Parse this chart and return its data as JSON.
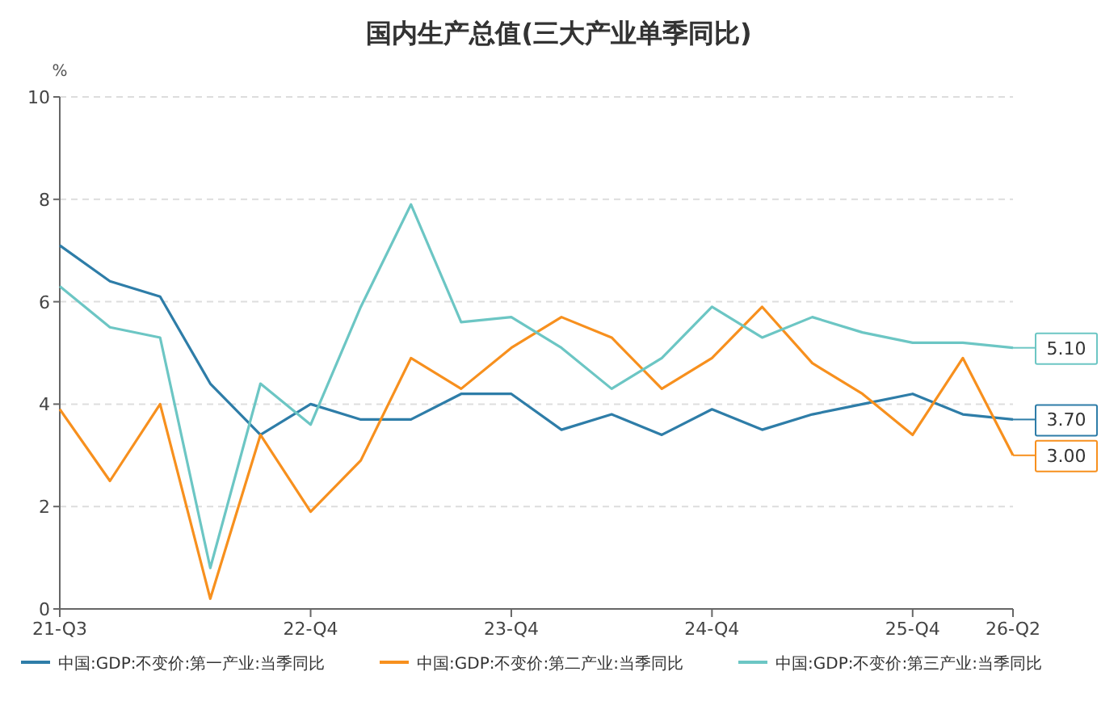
{
  "chart_data": {
    "type": "line",
    "title": "国内生产总值(三大产业单季同比)",
    "ylabel": "%",
    "categories": [
      "21-Q3",
      null,
      null,
      null,
      null,
      "22-Q4",
      null,
      null,
      null,
      "23-Q4",
      null,
      null,
      null,
      "24-Q4",
      null,
      null,
      null,
      "25-Q4",
      null,
      "26-Q2"
    ],
    "ylim": [
      0,
      10
    ],
    "yticks": [
      0,
      2,
      4,
      6,
      8,
      10
    ],
    "grid": "y",
    "legend": "bottom",
    "marker": "none",
    "line_style": "solid",
    "series": [
      {
        "name": "中国:GDP:不变价:第一产业:当季同比",
        "color": "#2e7da8",
        "values": [
          7.1,
          6.4,
          6.1,
          4.4,
          3.4,
          4.0,
          3.7,
          3.7,
          4.2,
          4.2,
          3.5,
          3.8,
          3.4,
          3.9,
          3.5,
          3.8,
          4.0,
          4.2,
          3.8,
          3.7
        ],
        "value_labels": [
          null,
          null,
          null,
          null,
          null,
          null,
          null,
          null,
          null,
          null,
          null,
          null,
          null,
          null,
          null,
          null,
          null,
          null,
          null,
          "3.70"
        ]
      },
      {
        "name": "中国:GDP:不变价:第二产业:当季同比",
        "color": "#f7901e",
        "values": [
          3.9,
          2.5,
          4.0,
          0.2,
          3.4,
          1.9,
          2.9,
          4.9,
          4.3,
          5.1,
          5.7,
          5.3,
          4.3,
          4.9,
          5.9,
          4.8,
          4.2,
          3.4,
          4.9,
          3.0
        ],
        "value_labels": [
          null,
          null,
          null,
          null,
          null,
          null,
          null,
          null,
          null,
          null,
          null,
          null,
          null,
          null,
          null,
          null,
          null,
          null,
          null,
          "3.00"
        ]
      },
      {
        "name": "中国:GDP:不变价:第三产业:当季同比",
        "color": "#6cc6c4",
        "values": [
          6.3,
          5.5,
          5.3,
          0.8,
          4.4,
          3.6,
          5.9,
          7.9,
          5.6,
          5.7,
          5.1,
          4.3,
          4.9,
          5.9,
          5.3,
          5.7,
          5.4,
          5.2,
          5.2,
          5.1
        ],
        "value_labels": [
          null,
          null,
          null,
          null,
          null,
          null,
          null,
          null,
          null,
          null,
          null,
          null,
          null,
          null,
          null,
          null,
          null,
          null,
          null,
          "5.10"
        ]
      }
    ]
  }
}
